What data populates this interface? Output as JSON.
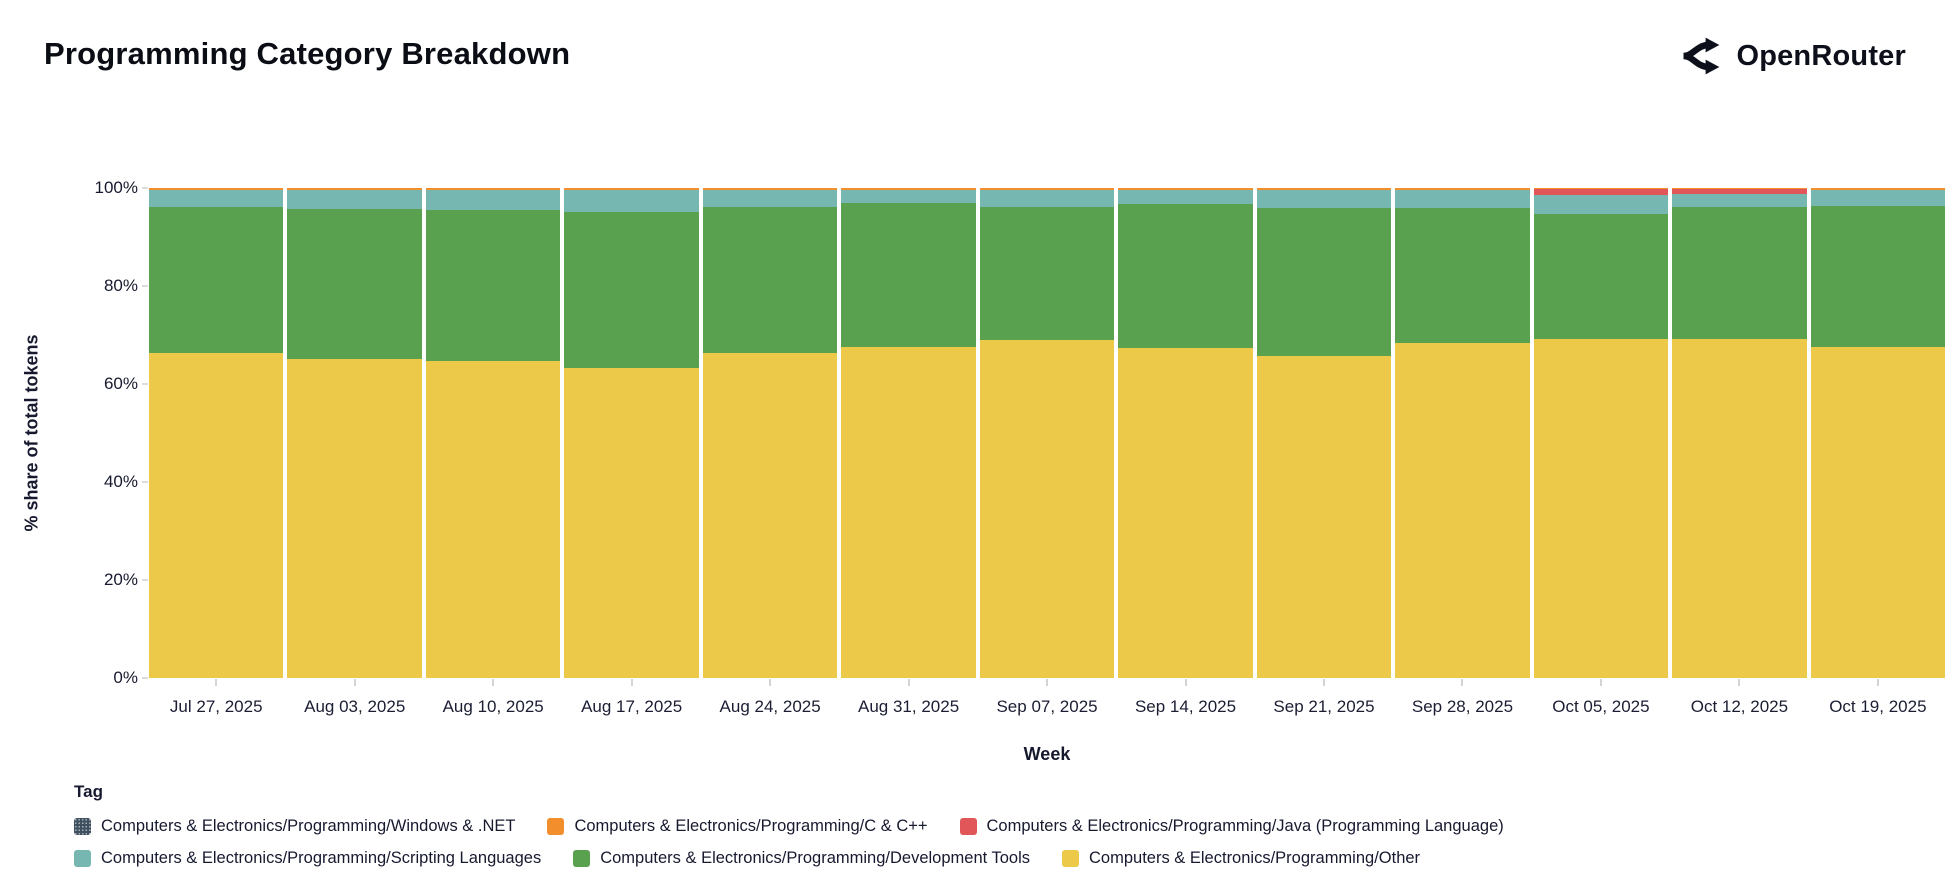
{
  "header": {
    "title": "Programming Category Breakdown",
    "brand": "OpenRouter"
  },
  "chart_data": {
    "type": "bar",
    "stacked": true,
    "normalized_percent": true,
    "title": "Programming Category Breakdown",
    "xlabel": "Week",
    "ylabel": "% share of total tokens",
    "ylim": [
      0,
      100
    ],
    "yticks": [
      0,
      20,
      40,
      60,
      80,
      100
    ],
    "grid": false,
    "legend_title": "Tag",
    "legend_position": "bottom",
    "categories": [
      "Jul 27, 2025",
      "Aug 03, 2025",
      "Aug 10, 2025",
      "Aug 17, 2025",
      "Aug 24, 2025",
      "Aug 31, 2025",
      "Sep 07, 2025",
      "Sep 14, 2025",
      "Sep 21, 2025",
      "Sep 28, 2025",
      "Oct 05, 2025",
      "Oct 12, 2025",
      "Oct 19, 2025"
    ],
    "series": [
      {
        "key": "windows-dotnet",
        "label": "Computers & Electronics/Programming/Windows & .NET",
        "color": "#3E5060",
        "pattern": "dots",
        "values": [
          0.1,
          0.1,
          0.1,
          0.1,
          0.1,
          0.1,
          0.1,
          0.1,
          0.1,
          0.1,
          0.1,
          0.1,
          0.1
        ]
      },
      {
        "key": "c-cpp",
        "label": "Computers & Electronics/Programming/C & C++",
        "color": "#F28E2B",
        "values": [
          0.3,
          0.3,
          0.3,
          0.3,
          0.3,
          0.3,
          0.3,
          0.3,
          0.3,
          0.3,
          0.2,
          0.2,
          0.3
        ]
      },
      {
        "key": "java",
        "label": "Computers & Electronics/Programming/Java (Programming Language)",
        "color": "#E15759",
        "values": [
          0.1,
          0.1,
          0.1,
          0.1,
          0.1,
          0.1,
          0.1,
          0.1,
          0.1,
          0.1,
          1.1,
          1.0,
          0.1
        ]
      },
      {
        "key": "scripting-languages",
        "label": "Computers & Electronics/Programming/Scripting Languages",
        "color": "#76B7B2",
        "values": [
          3.4,
          3.8,
          4.0,
          4.3,
          3.3,
          2.5,
          3.3,
          2.8,
          3.5,
          3.6,
          4.0,
          2.5,
          3.1
        ]
      },
      {
        "key": "development-tools",
        "label": "Computers & Electronics/Programming/Development Tools",
        "color": "#59A14F",
        "values": [
          29.8,
          30.7,
          30.8,
          32.0,
          29.8,
          29.4,
          27.2,
          29.4,
          30.3,
          27.5,
          25.4,
          27.0,
          28.9
        ]
      },
      {
        "key": "other",
        "label": "Computers & Electronics/Programming/Other",
        "color": "#EDC949",
        "values": [
          66.3,
          65.0,
          64.7,
          63.2,
          66.4,
          67.6,
          69.0,
          67.3,
          65.7,
          68.4,
          69.2,
          69.2,
          67.5
        ]
      }
    ]
  }
}
